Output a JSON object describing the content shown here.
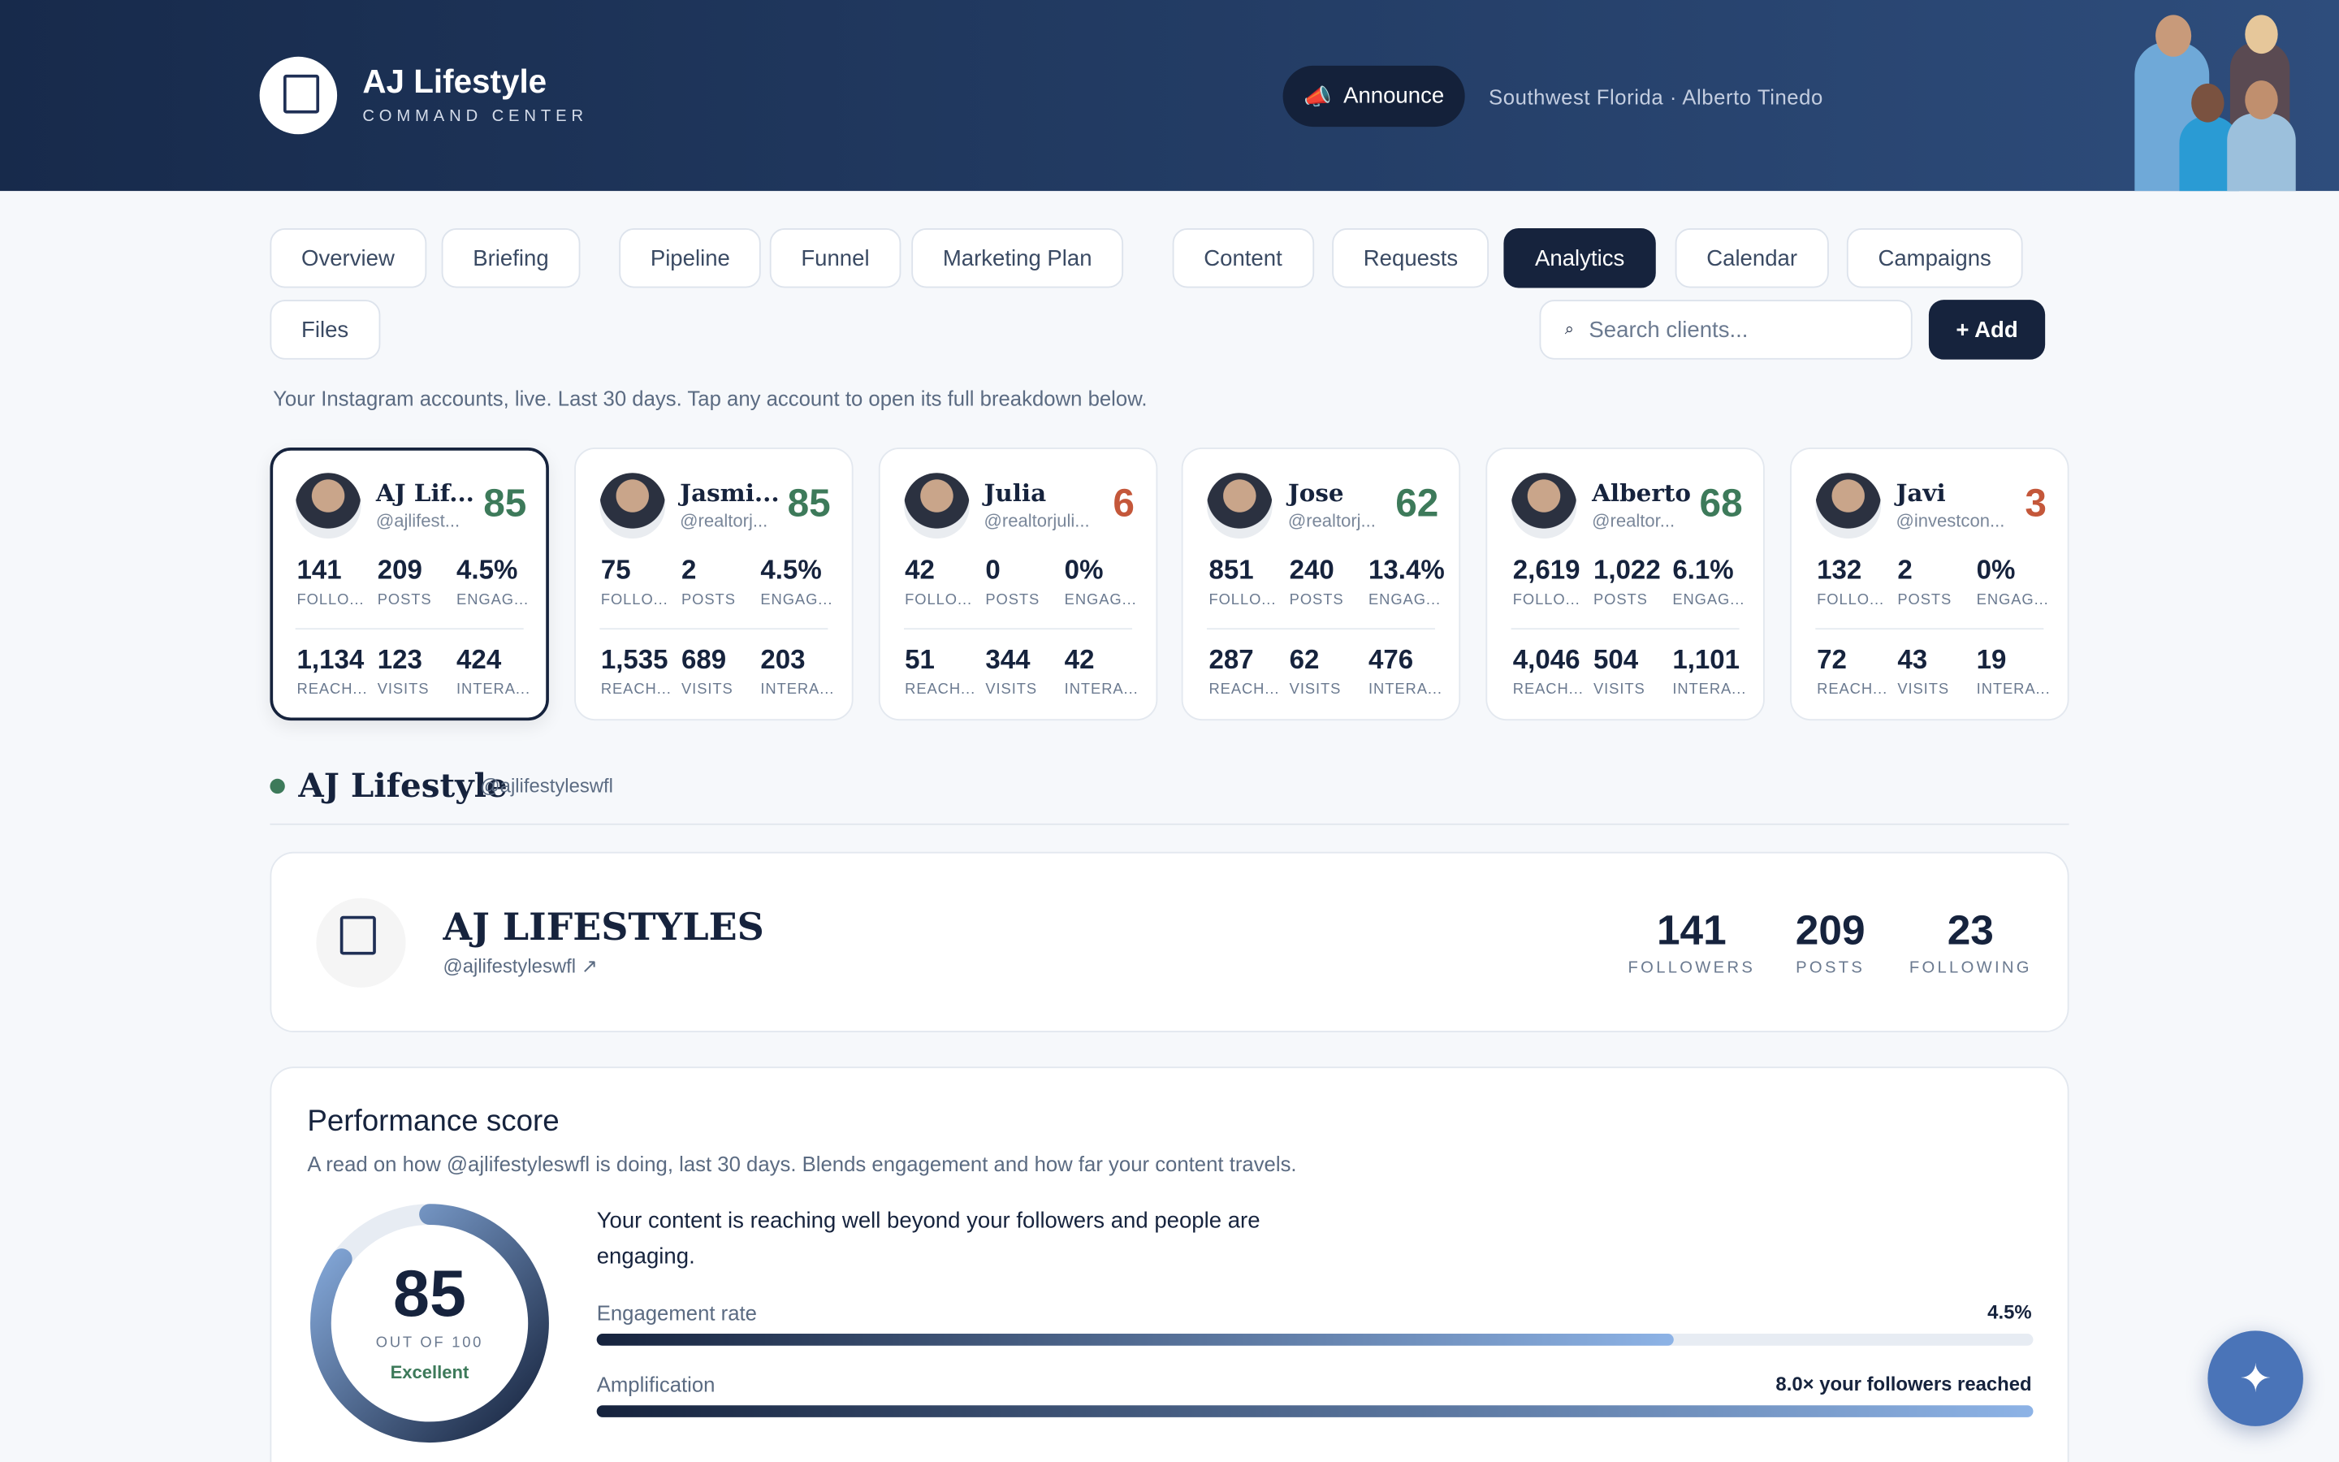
{
  "header": {
    "title": "AJ Lifestyle",
    "subtitle": "COMMAND CENTER",
    "announce": "Announce",
    "location": "Southwest Florida · Alberto Tinedo"
  },
  "tabs": [
    {
      "label": "Overview"
    },
    {
      "label": "Briefing"
    },
    {
      "label": "Pipeline"
    },
    {
      "label": "Funnel"
    },
    {
      "label": "Marketing Plan"
    },
    {
      "label": "Content"
    },
    {
      "label": "Requests"
    },
    {
      "label": "Analytics",
      "active": true
    },
    {
      "label": "Calendar"
    },
    {
      "label": "Campaigns"
    },
    {
      "label": "Files"
    }
  ],
  "search_placeholder": "Search clients...",
  "add_button": "+ Add",
  "caption": "Your Instagram accounts, live. Last 30 days. Tap any account to open its full breakdown below.",
  "accounts": [
    {
      "name": "AJ Lif...",
      "handle": "@ajlifest...",
      "score": 85,
      "score_color": "#3d7a5a",
      "selected": true,
      "stats": [
        {
          "value": "141",
          "label": "FOLLO..."
        },
        {
          "value": "209",
          "label": "POSTS"
        },
        {
          "value": "4.5%",
          "label": "ENGAG..."
        },
        {
          "value": "1,134",
          "label": "REACH..."
        },
        {
          "value": "123",
          "label": "VISITS"
        },
        {
          "value": "424",
          "label": "INTERA..."
        }
      ]
    },
    {
      "name": "Jasmi...",
      "handle": "@realtorj...",
      "score": 85,
      "score_color": "#3d7a5a",
      "stats": [
        {
          "value": "75",
          "label": "FOLLO..."
        },
        {
          "value": "2",
          "label": "POSTS"
        },
        {
          "value": "4.5%",
          "label": "ENGAG..."
        },
        {
          "value": "1,535",
          "label": "REACH..."
        },
        {
          "value": "689",
          "label": "VISITS"
        },
        {
          "value": "203",
          "label": "INTERA..."
        }
      ]
    },
    {
      "name": "Julia",
      "handle": "@realtorjuli...",
      "score": 6,
      "score_color": "#c4573a",
      "stats": [
        {
          "value": "42",
          "label": "FOLLO..."
        },
        {
          "value": "0",
          "label": "POSTS"
        },
        {
          "value": "0%",
          "label": "ENGAG..."
        },
        {
          "value": "51",
          "label": "REACH..."
        },
        {
          "value": "344",
          "label": "VISITS"
        },
        {
          "value": "42",
          "label": "INTERA..."
        }
      ]
    },
    {
      "name": "Jose",
      "handle": "@realtorj...",
      "score": 62,
      "score_color": "#3d7a5a",
      "stats": [
        {
          "value": "851",
          "label": "FOLLO..."
        },
        {
          "value": "240",
          "label": "POSTS"
        },
        {
          "value": "13.4%",
          "label": "ENGAG..."
        },
        {
          "value": "287",
          "label": "REACH..."
        },
        {
          "value": "62",
          "label": "VISITS"
        },
        {
          "value": "476",
          "label": "INTERA..."
        }
      ]
    },
    {
      "name": "Alberto",
      "handle": "@realtor...",
      "score": 68,
      "score_color": "#3d7a5a",
      "stats": [
        {
          "value": "2,619",
          "label": "FOLLO..."
        },
        {
          "value": "1,022",
          "label": "POSTS"
        },
        {
          "value": "6.1%",
          "label": "ENGAG..."
        },
        {
          "value": "4,046",
          "label": "REACH..."
        },
        {
          "value": "504",
          "label": "VISITS"
        },
        {
          "value": "1,101",
          "label": "INTERA..."
        }
      ]
    },
    {
      "name": "Javi",
      "handle": "@investcon...",
      "score": 3,
      "score_color": "#c4573a",
      "stats": [
        {
          "value": "132",
          "label": "FOLLO..."
        },
        {
          "value": "2",
          "label": "POSTS"
        },
        {
          "value": "0%",
          "label": "ENGAG..."
        },
        {
          "value": "72",
          "label": "REACH..."
        },
        {
          "value": "43",
          "label": "VISITS"
        },
        {
          "value": "19",
          "label": "INTERA..."
        }
      ]
    }
  ],
  "selected": {
    "name": "AJ Lifestyle",
    "handle": "@ajlifestyleswfl"
  },
  "profile": {
    "name": "AJ LIFESTYLES",
    "handle": "@ajlifestyleswfl",
    "stats": [
      {
        "value": "141",
        "label": "FOLLOWERS"
      },
      {
        "value": "209",
        "label": "POSTS"
      },
      {
        "value": "23",
        "label": "FOLLOWING"
      }
    ]
  },
  "performance": {
    "title": "Performance score",
    "description": "A read on how @ajlifestyleswfl is doing, last 30 days. Blends engagement and how far your content travels.",
    "score": 85,
    "score_caption": "OUT OF 100",
    "rating": "Excellent",
    "summary": "Your content is reaching well beyond your followers and people are engaging.",
    "metrics": [
      {
        "label": "Engagement rate",
        "value": "4.5%"
      },
      {
        "label": "Amplification",
        "value": "8.0× your followers reached"
      }
    ]
  }
}
